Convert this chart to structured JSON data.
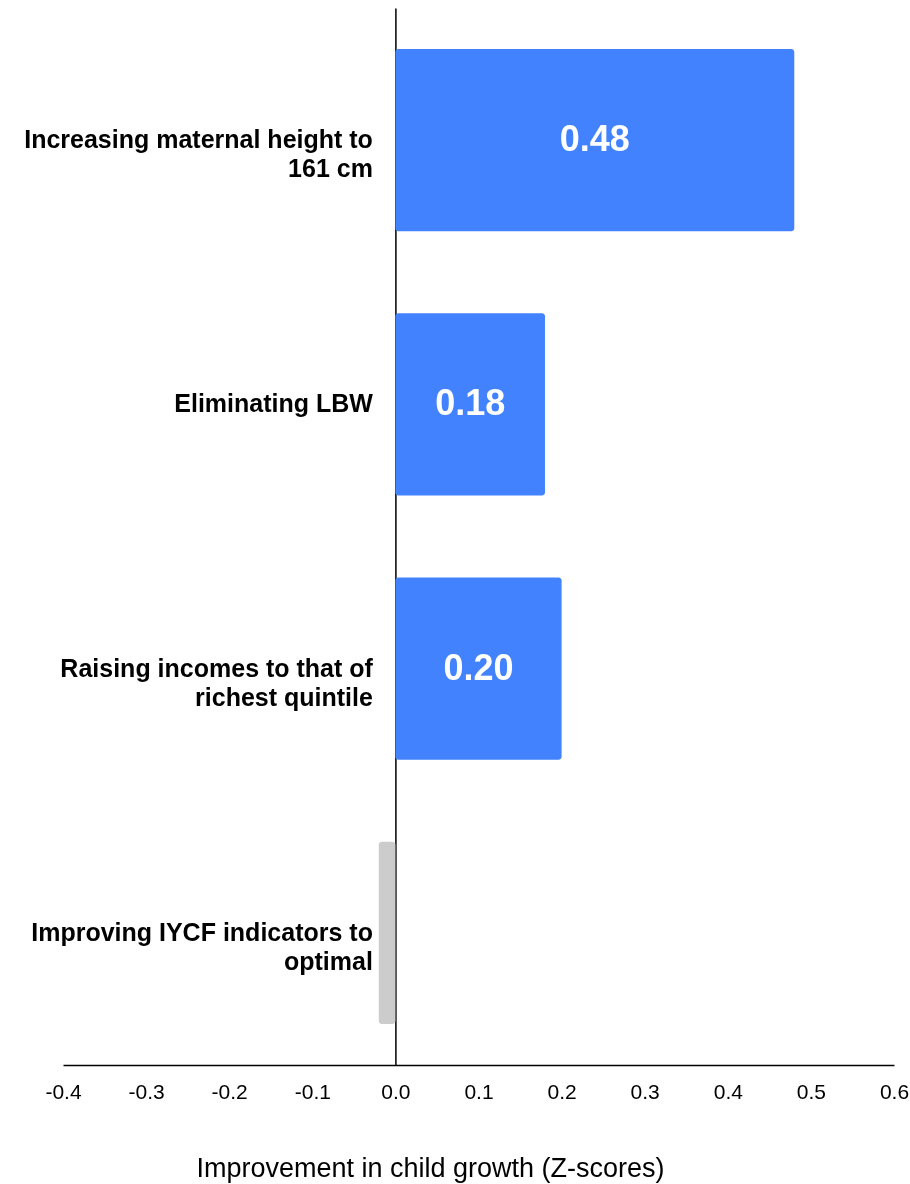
{
  "chart_data": {
    "type": "bar",
    "orientation": "horizontal",
    "categories": [
      "Increasing maternal height to 161 cm",
      "Eliminating LBW",
      "Raising incomes to that of richest quintile",
      "Improving IYCF indicators to optimal"
    ],
    "values": [
      0.48,
      0.18,
      0.2,
      -0.02
    ],
    "colors": [
      "#4282ff",
      "#4282ff",
      "#4282ff",
      "#cccccc"
    ],
    "value_labels": [
      "0.48",
      "0.18",
      "0.20",
      null
    ],
    "xlabel": "Improvement in child growth (Z-scores)",
    "xlim": [
      -0.4,
      0.6
    ],
    "xticks": [
      -0.4,
      -0.3,
      -0.2,
      -0.1,
      {
        "value": 0,
        "label": "0.0"
      },
      0.1,
      0.2,
      0.3,
      0.4,
      0.5,
      0.6
    ]
  }
}
